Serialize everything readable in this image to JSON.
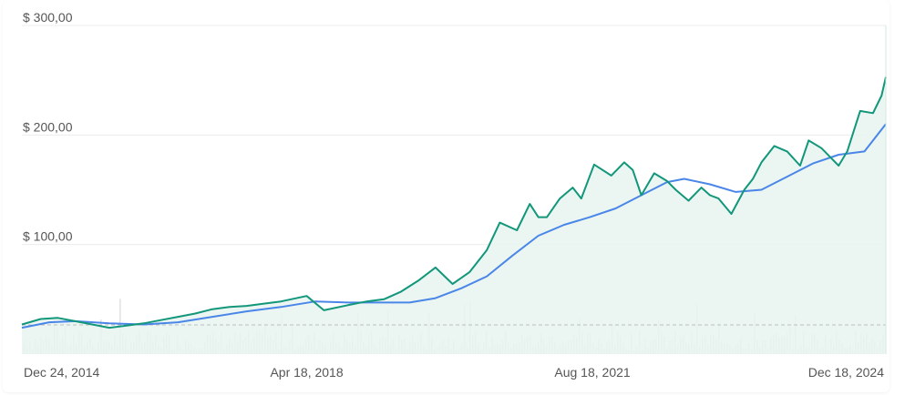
{
  "chart_data": {
    "type": "line",
    "title": "",
    "xlabel": "",
    "ylabel": "",
    "ylim": [
      0,
      300
    ],
    "y_tick_labels": [
      {
        "value": 100,
        "label": "$ 100,00"
      },
      {
        "value": 200,
        "label": "$ 200,00"
      },
      {
        "value": 300,
        "label": "$ 300,00"
      }
    ],
    "x_tick_labels": [
      {
        "value": 2014.98,
        "label": "Dec 24, 2014"
      },
      {
        "value": 2018.3,
        "label": "Apr 18, 2018"
      },
      {
        "value": 2021.63,
        "label": "Aug 18, 2021"
      },
      {
        "value": 2024.96,
        "label": "Dec 18, 2024"
      }
    ],
    "xlim": [
      2014.98,
      2025.05
    ],
    "grid": true,
    "legend": "none",
    "colors": {
      "price": "#12977a",
      "price_fill": "#e8f5f1",
      "moving_average": "#4a86e8",
      "volume": "#e3e3e3",
      "grid": "#ececec",
      "volume_reference": "#bdbdbd"
    },
    "series": [
      {
        "key": "price",
        "x": [
          2014.98,
          2015.2,
          2015.4,
          2015.6,
          2015.8,
          2016.0,
          2016.2,
          2016.4,
          2016.6,
          2016.8,
          2017.0,
          2017.2,
          2017.4,
          2017.6,
          2017.8,
          2018.0,
          2018.3,
          2018.5,
          2018.8,
          2019.0,
          2019.2,
          2019.4,
          2019.6,
          2019.8,
          2020.0,
          2020.2,
          2020.4,
          2020.55,
          2020.75,
          2020.9,
          2021.0,
          2021.1,
          2021.25,
          2021.4,
          2021.5,
          2021.65,
          2021.85,
          2022.0,
          2022.1,
          2022.2,
          2022.35,
          2022.5,
          2022.6,
          2022.75,
          2022.9,
          2023.0,
          2023.1,
          2023.25,
          2023.4,
          2023.5,
          2023.6,
          2023.75,
          2023.9,
          2024.05,
          2024.15,
          2024.3,
          2024.4,
          2024.5,
          2024.6,
          2024.75,
          2024.9,
          2025.0,
          2025.05
        ],
        "y": [
          27,
          32,
          33,
          30,
          27,
          24,
          26,
          28,
          31,
          34,
          37,
          41,
          43,
          44,
          46,
          48,
          53,
          40,
          45,
          48,
          50,
          57,
          67,
          79,
          64,
          75,
          95,
          120,
          113,
          137,
          125,
          125,
          142,
          152,
          142,
          173,
          163,
          175,
          168,
          145,
          165,
          158,
          150,
          140,
          152,
          145,
          142,
          128,
          150,
          160,
          175,
          190,
          185,
          172,
          195,
          188,
          180,
          172,
          185,
          222,
          220,
          236,
          253
        ]
      },
      {
        "key": "moving_average",
        "x": [
          2014.98,
          2015.3,
          2015.6,
          2016.0,
          2016.4,
          2016.8,
          2017.2,
          2017.6,
          2018.0,
          2018.4,
          2018.8,
          2019.2,
          2019.5,
          2019.8,
          2020.1,
          2020.4,
          2020.7,
          2021.0,
          2021.3,
          2021.6,
          2021.9,
          2022.2,
          2022.5,
          2022.7,
          2023.0,
          2023.3,
          2023.6,
          2023.9,
          2024.2,
          2024.5,
          2024.8,
          2025.05
        ],
        "y": [
          24,
          29,
          30,
          28,
          27,
          29,
          34,
          39,
          43,
          48,
          47,
          47,
          47,
          51,
          60,
          71,
          90,
          108,
          118,
          125,
          133,
          145,
          157,
          160,
          155,
          148,
          150,
          162,
          174,
          182,
          185,
          210
        ]
      }
    ],
    "volume_reference_level": 0.9
  }
}
